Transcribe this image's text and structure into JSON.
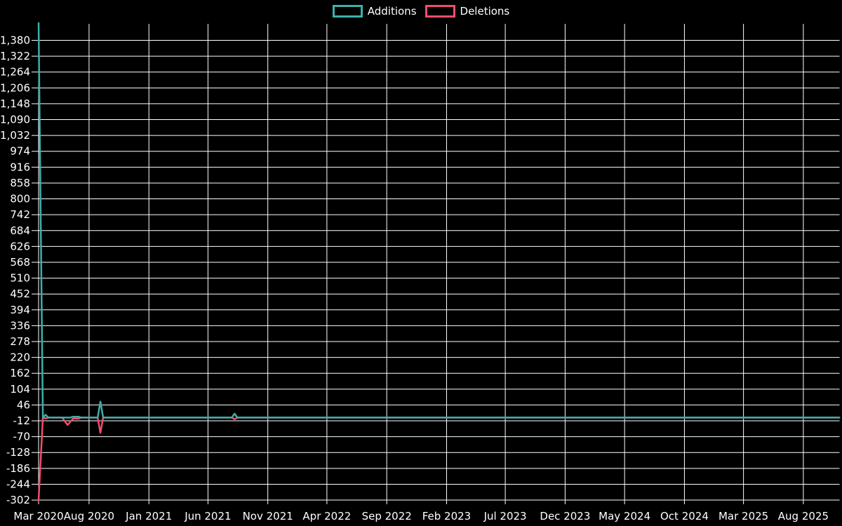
{
  "colors": {
    "background": "#000000",
    "grid": "#ffffff",
    "text": "#ffffff",
    "additions": "#3cb0aa",
    "deletions": "#f04e6d"
  },
  "legend": {
    "items": [
      {
        "label": "Additions",
        "color": "#3cb0aa"
      },
      {
        "label": "Deletions",
        "color": "#f04e6d"
      }
    ]
  },
  "chart_data": {
    "type": "line",
    "title": "",
    "xlabel": "",
    "ylabel": "",
    "grid": true,
    "legend_position": "top",
    "ylim": [
      -302,
      1443
    ],
    "y_axis": {
      "tick_step": 58,
      "tick_labels": [
        "1,380",
        "1,322",
        "1,264",
        "1,206",
        "1,148",
        "1,090",
        "1,032",
        "974",
        "916",
        "858",
        "800",
        "742",
        "684",
        "626",
        "568",
        "510",
        "452",
        "394",
        "336",
        "278",
        "220",
        "162",
        "104",
        "46",
        "-12",
        "-70",
        "-128",
        "-186",
        "-244",
        "-302"
      ]
    },
    "x_axis": {
      "ticks": [
        {
          "label": "Mar 2020",
          "date": "2020-03-25"
        },
        {
          "label": "Aug 2020",
          "date": "2020-08-01"
        },
        {
          "label": "Jan 2021",
          "date": "2021-01-01"
        },
        {
          "label": "Jun 2021",
          "date": "2021-06-01"
        },
        {
          "label": "Nov 2021",
          "date": "2021-11-01"
        },
        {
          "label": "Apr 2022",
          "date": "2022-04-01"
        },
        {
          "label": "Sep 2022",
          "date": "2022-09-01"
        },
        {
          "label": "Feb 2023",
          "date": "2023-02-01"
        },
        {
          "label": "Jul 2023",
          "date": "2023-07-01"
        },
        {
          "label": "Dec 2023",
          "date": "2023-12-01"
        },
        {
          "label": "May 2024",
          "date": "2024-05-01"
        },
        {
          "label": "Oct 2024",
          "date": "2024-10-01"
        },
        {
          "label": "Mar 2025",
          "date": "2025-03-01"
        },
        {
          "label": "Aug 2025",
          "date": "2025-08-01"
        }
      ]
    },
    "series": [
      {
        "name": "Additions",
        "color": "#3cb0aa",
        "points": [
          [
            "2020-03-25",
            1443
          ],
          [
            "2020-04-05",
            0
          ],
          [
            "2020-04-12",
            10
          ],
          [
            "2020-04-19",
            0
          ],
          [
            "2020-06-14",
            0
          ],
          [
            "2020-06-21",
            3
          ],
          [
            "2020-07-05",
            3
          ],
          [
            "2020-07-12",
            0
          ],
          [
            "2020-08-23",
            0
          ],
          [
            "2020-08-30",
            58
          ],
          [
            "2020-09-06",
            0
          ],
          [
            "2021-08-01",
            0
          ],
          [
            "2021-08-08",
            14
          ],
          [
            "2021-08-15",
            0
          ],
          [
            "2025-11-01",
            0
          ]
        ]
      },
      {
        "name": "Deletions",
        "color": "#f04e6d",
        "points": [
          [
            "2020-03-25",
            -302
          ],
          [
            "2020-04-05",
            0
          ],
          [
            "2020-04-12",
            -3
          ],
          [
            "2020-04-19",
            0
          ],
          [
            "2020-05-24",
            0
          ],
          [
            "2020-06-07",
            -27
          ],
          [
            "2020-06-21",
            -4
          ],
          [
            "2020-07-05",
            -4
          ],
          [
            "2020-07-12",
            0
          ],
          [
            "2020-08-23",
            0
          ],
          [
            "2020-08-30",
            -56
          ],
          [
            "2020-09-06",
            0
          ],
          [
            "2021-08-01",
            0
          ],
          [
            "2021-08-08",
            -6
          ],
          [
            "2021-08-15",
            0
          ],
          [
            "2025-11-01",
            0
          ]
        ]
      }
    ]
  }
}
